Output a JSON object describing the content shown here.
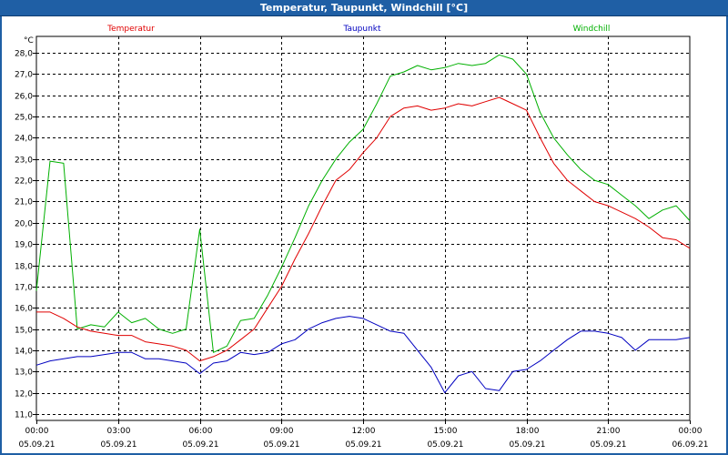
{
  "window": {
    "title": "Temperatur, Taupunkt, Windchill [°C]"
  },
  "colors": {
    "title_bar": "#1f5fa5",
    "temperatur": "#e00000",
    "taupunkt": "#0000c0",
    "windchill": "#00b000",
    "grid": "#000000"
  },
  "chart_data": {
    "type": "line",
    "title": "Temperatur, Taupunkt, Windchill [°C]",
    "ylabel": "°C",
    "xlabel": "",
    "ylim": [
      11,
      28
    ],
    "xlim": [
      0,
      24
    ],
    "grid": true,
    "legend_placement": "top",
    "y_ticks": [
      "11,0",
      "12,0",
      "13,0",
      "14,0",
      "15,0",
      "16,0",
      "17,0",
      "18,0",
      "19,0",
      "20,0",
      "21,0",
      "22,0",
      "23,0",
      "24,0",
      "25,0",
      "26,0",
      "27,0",
      "28,0"
    ],
    "x_ticks": [
      {
        "time": "00:00",
        "date": "05.09.21"
      },
      {
        "time": "03:00",
        "date": "05.09.21"
      },
      {
        "time": "06:00",
        "date": "05.09.21"
      },
      {
        "time": "09:00",
        "date": "05.09.21"
      },
      {
        "time": "12:00",
        "date": "05.09.21"
      },
      {
        "time": "15:00",
        "date": "05.09.21"
      },
      {
        "time": "18:00",
        "date": "05.09.21"
      },
      {
        "time": "21:00",
        "date": "05.09.21"
      },
      {
        "time": "00:00",
        "date": "06.09.21"
      }
    ],
    "x": [
      0,
      0.5,
      1,
      1.5,
      2,
      2.5,
      3,
      3.5,
      4,
      4.5,
      5,
      5.5,
      6,
      6.5,
      7,
      7.5,
      8,
      8.5,
      9,
      9.5,
      10,
      10.5,
      11,
      11.5,
      12,
      12.5,
      13,
      13.5,
      14,
      14.5,
      15,
      15.5,
      16,
      16.5,
      17,
      17.5,
      18,
      18.5,
      19,
      19.5,
      20,
      20.5,
      21,
      21.5,
      22,
      22.5,
      23,
      23.5,
      24
    ],
    "series": [
      {
        "name": "Temperatur",
        "color": "#e00000",
        "values": [
          15.8,
          15.8,
          15.5,
          15.1,
          14.9,
          14.8,
          14.7,
          14.7,
          14.4,
          14.3,
          14.2,
          14.0,
          13.5,
          13.7,
          14.0,
          14.5,
          15.0,
          16.0,
          17.0,
          18.3,
          19.5,
          20.8,
          22.0,
          22.5,
          23.3,
          24.0,
          25.0,
          25.4,
          25.5,
          25.3,
          25.4,
          25.6,
          25.5,
          25.7,
          25.9,
          25.6,
          25.3,
          24.0,
          22.8,
          22.0,
          21.5,
          21.0,
          20.8,
          20.5,
          20.2,
          19.8,
          19.3,
          19.2,
          18.8
        ]
      },
      {
        "name": "Taupunkt",
        "color": "#0000c0",
        "values": [
          13.3,
          13.5,
          13.6,
          13.7,
          13.7,
          13.8,
          13.9,
          13.9,
          13.6,
          13.6,
          13.5,
          13.4,
          12.9,
          13.4,
          13.5,
          13.9,
          13.8,
          13.9,
          14.3,
          14.5,
          15.0,
          15.3,
          15.5,
          15.6,
          15.5,
          15.2,
          14.9,
          14.8,
          14.0,
          13.2,
          12.0,
          12.8,
          13.0,
          12.2,
          12.1,
          13.0,
          13.1,
          13.5,
          14.0,
          14.5,
          14.9,
          14.9,
          14.8,
          14.6,
          14.0,
          14.5,
          14.5,
          14.5,
          14.6
        ]
      },
      {
        "name": "Windchill",
        "color": "#00b000",
        "values": [
          16.8,
          22.9,
          22.8,
          15.0,
          15.2,
          15.1,
          15.8,
          15.3,
          15.5,
          15.0,
          14.8,
          15.0,
          19.7,
          13.9,
          14.2,
          15.4,
          15.5,
          16.6,
          17.9,
          19.3,
          20.8,
          22.0,
          23.0,
          23.8,
          24.4,
          25.6,
          26.9,
          27.1,
          27.4,
          27.2,
          27.3,
          27.5,
          27.4,
          27.5,
          27.9,
          27.7,
          27.0,
          25.2,
          24.0,
          23.2,
          22.5,
          22.0,
          21.8,
          21.3,
          20.8,
          20.2,
          20.6,
          20.8,
          20.1
        ]
      }
    ]
  }
}
